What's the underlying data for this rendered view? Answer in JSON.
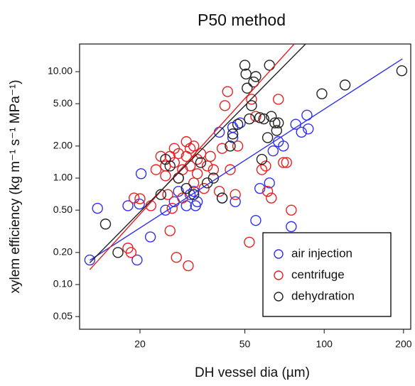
{
  "chart_data": {
    "type": "scatter",
    "title": "P50 method",
    "xlabel": "DH vessel dia (µm)",
    "ylabel": "xylem efficiency (kg m⁻¹ s⁻¹ MPa⁻¹)",
    "xscale": "log",
    "yscale": "log",
    "legend": "lower right",
    "grid": false,
    "xlim": [
      11.8,
      213
    ],
    "ylim": [
      0.038,
      18.2
    ],
    "xticks": [
      20,
      50,
      100,
      200
    ],
    "yticks": [
      {
        "value": 0.05,
        "label": "0.05"
      },
      {
        "value": 0.1,
        "label": "0.10"
      },
      {
        "value": 0.2,
        "label": "0.20"
      },
      {
        "value": 0.5,
        "label": "0.50"
      },
      {
        "value": 1,
        "label": "1.00"
      },
      {
        "value": 2,
        "label": "2.00"
      },
      {
        "value": 5,
        "label": "5.00"
      },
      {
        "value": 10,
        "label": "10.00"
      }
    ],
    "series": [
      {
        "name": "air injection",
        "color": "#3030f0",
        "x": [
          12.9,
          13.8,
          18.0,
          19.5,
          19.9,
          20.2,
          21.9,
          25,
          27,
          28,
          30,
          31,
          32,
          32.5,
          33,
          40,
          41,
          45,
          45,
          46,
          48,
          55,
          57,
          62,
          64,
          67,
          70,
          75,
          78,
          82,
          86,
          87
        ],
        "values": [
          0.17,
          0.52,
          0.55,
          0.17,
          0.57,
          1.1,
          0.28,
          0.5,
          0.6,
          0.75,
          0.55,
          0.7,
          0.75,
          0.55,
          0.6,
          2.7,
          0.65,
          2.4,
          3.0,
          0.6,
          3.3,
          0.4,
          0.8,
          0.9,
          1.8,
          2.2,
          2.0,
          0.35,
          3.2,
          2.7,
          3.9,
          2.9
        ],
        "fit": {
          "x": [
            12.9,
            198
          ],
          "values": [
            0.169,
            13.2
          ]
        }
      },
      {
        "name": "centrifuge",
        "color": "#e82020",
        "x": [
          18,
          18.5,
          19,
          20,
          22,
          23,
          24,
          25,
          25,
          25.5,
          26,
          26,
          26.5,
          27,
          27,
          27.5,
          28,
          28,
          29,
          29,
          30,
          30,
          30.5,
          31,
          31,
          32,
          32,
          33,
          33,
          34,
          35,
          36,
          37,
          38,
          40,
          41,
          42,
          43,
          44,
          46,
          47,
          52,
          53,
          55,
          58,
          60,
          61,
          63,
          67,
          70,
          72,
          75
        ],
        "values": [
          0.22,
          0.2,
          0.65,
          0.64,
          0.55,
          1.2,
          1.6,
          1.05,
          1.3,
          0.7,
          0.32,
          1.6,
          0.52,
          1.9,
          1.4,
          0.18,
          1.0,
          1.7,
          1.2,
          0.65,
          2.2,
          1.6,
          0.15,
          1.3,
          1.9,
          0.9,
          2.0,
          1.5,
          1.1,
          1.7,
          0.8,
          1.3,
          1.6,
          1.2,
          0.75,
          1.9,
          4.8,
          6.5,
          1.2,
          0.7,
          2.0,
          0.25,
          5.5,
          3.8,
          1.2,
          1.3,
          0.75,
          0.65,
          5.5,
          1.4,
          1.4,
          0.5
        ],
        "fit": {
          "x": [
            12.9,
            77
          ],
          "values": [
            0.138,
            18.2
          ]
        }
      },
      {
        "name": "dehydration",
        "color": "#222222",
        "x": [
          14.8,
          16.5,
          24,
          25,
          26,
          28,
          30,
          32,
          34,
          36,
          38,
          41,
          44,
          45,
          47,
          50,
          50.5,
          51,
          52,
          53,
          54,
          55,
          57,
          58,
          59,
          61,
          62,
          63,
          65,
          66,
          67,
          98,
          120,
          197
        ],
        "values": [
          0.37,
          0.2,
          0.7,
          1.5,
          1.3,
          1.0,
          0.8,
          0.7,
          1.4,
          0.9,
          1.0,
          0.65,
          2.0,
          2.6,
          3.2,
          11.5,
          9.5,
          7.0,
          3.6,
          4.8,
          8.0,
          9.0,
          3.7,
          1.5,
          3.6,
          2.4,
          11.5,
          3.8,
          3.3,
          2.8,
          3.3,
          6.2,
          7.5,
          10.2
        ],
        "fit": {
          "x": [
            12.9,
            85
          ],
          "values": [
            0.16,
            18.2
          ]
        }
      }
    ]
  }
}
